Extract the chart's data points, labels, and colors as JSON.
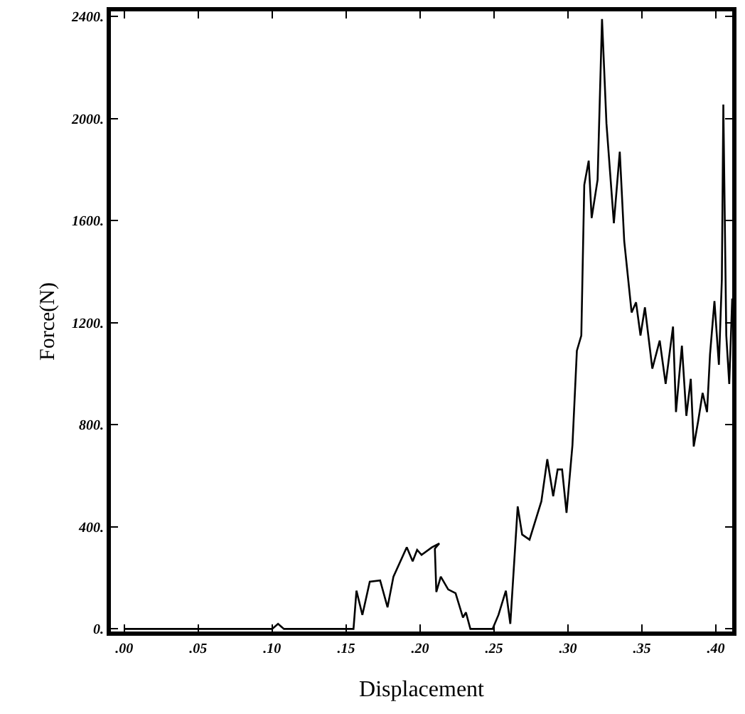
{
  "chart_data": {
    "type": "line",
    "xlabel": "Displacement",
    "ylabel": "Force(N)",
    "x": [
      0,
      0.1,
      0.104,
      0.108,
      0.155,
      0.157,
      0.161,
      0.166,
      0.173,
      0.178,
      0.182,
      0.191,
      0.195,
      0.198,
      0.201,
      0.208,
      0.213,
      0.21,
      0.211,
      0.214,
      0.219,
      0.224,
      0.229,
      0.231,
      0.234,
      0.249,
      0.253,
      0.258,
      0.261,
      0.266,
      0.269,
      0.274,
      0.282,
      0.286,
      0.29,
      0.293,
      0.296,
      0.299,
      0.303,
      0.306,
      0.309,
      0.311,
      0.314,
      0.316,
      0.32,
      0.323,
      0.326,
      0.331,
      0.335,
      0.338,
      0.343,
      0.346,
      0.349,
      0.352,
      0.357,
      0.362,
      0.366,
      0.371,
      0.373,
      0.377,
      0.38,
      0.383,
      0.385,
      0.388,
      0.391,
      0.394,
      0.396,
      0.399,
      0.402,
      0.404,
      0.405,
      0.407,
      0.409,
      0.411
    ],
    "series": [
      {
        "color": "#000000",
        "values": [
          0,
          0,
          20,
          0,
          0,
          150,
          55,
          185,
          190,
          85,
          205,
          320,
          265,
          310,
          290,
          320,
          335,
          315,
          145,
          205,
          155,
          140,
          45,
          65,
          0,
          0,
          55,
          150,
          20,
          480,
          370,
          350,
          500,
          665,
          520,
          625,
          625,
          455,
          720,
          1090,
          1150,
          1740,
          1835,
          1610,
          1760,
          2390,
          1980,
          1590,
          1870,
          1520,
          1240,
          1280,
          1150,
          1260,
          1020,
          1130,
          960,
          1185,
          850,
          1110,
          835,
          980,
          715,
          815,
          925,
          850,
          1075,
          1285,
          1035,
          1370,
          2055,
          1150,
          960,
          1295
        ]
      }
    ],
    "xlim": [
      -0.009,
      0.411
    ],
    "ylim": [
      -10,
      2420
    ],
    "xticks": [
      {
        "value": 0,
        "label": ".00"
      },
      {
        "value": 0.05,
        "label": ".05"
      },
      {
        "value": 0.1,
        "label": ".10"
      },
      {
        "value": 0.15,
        "label": ".15"
      },
      {
        "value": 0.2,
        "label": ".20"
      },
      {
        "value": 0.25,
        "label": ".25"
      },
      {
        "value": 0.3,
        "label": ".30"
      },
      {
        "value": 0.35,
        "label": ".35"
      },
      {
        "value": 0.4,
        "label": ".40"
      }
    ],
    "yticks": [
      {
        "value": 0,
        "label": "0."
      },
      {
        "value": 400,
        "label": "400."
      },
      {
        "value": 800,
        "label": "800."
      },
      {
        "value": 1200,
        "label": "1200."
      },
      {
        "value": 1600,
        "label": "1600."
      },
      {
        "value": 2000,
        "label": "2000."
      },
      {
        "value": 2400,
        "label": "2400."
      }
    ],
    "marker": "none",
    "line_style": "solid"
  }
}
